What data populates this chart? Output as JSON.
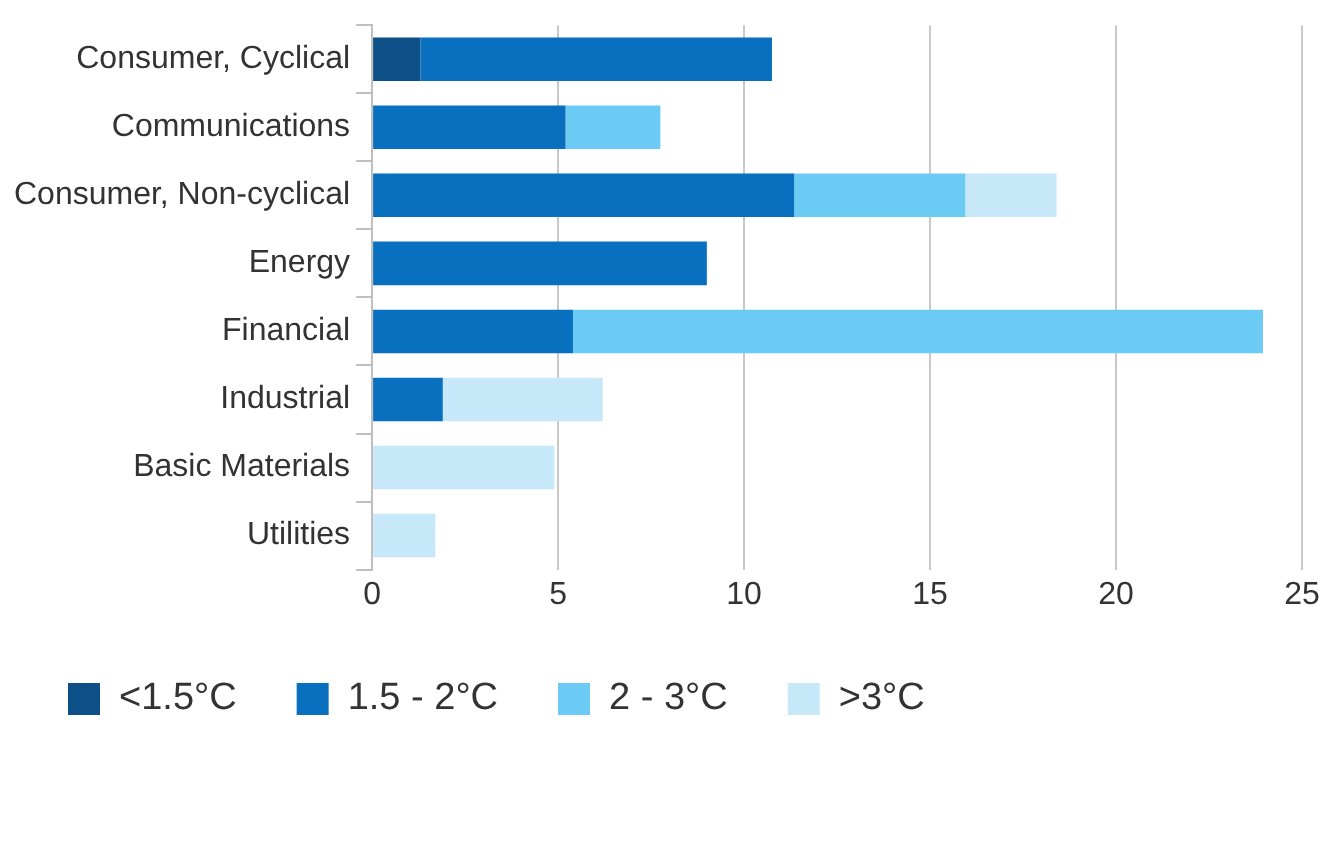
{
  "chart_data": {
    "type": "bar",
    "orientation": "horizontal",
    "stacked": true,
    "categories": [
      "Consumer, Cyclical",
      "Communications",
      "Consumer, Non-cyclical",
      "Energy",
      "Financial",
      "Industrial",
      "Basic Materials",
      "Utilities"
    ],
    "series": [
      {
        "name": "<1.5°C",
        "color": "#0d4f87",
        "values": [
          1.3,
          null,
          null,
          null,
          null,
          null,
          null,
          null
        ]
      },
      {
        "name": "1.5 - 2°C",
        "color": "#0870bf",
        "values": [
          9.45,
          5.2,
          11.35,
          9.0,
          5.4,
          1.9,
          null,
          null
        ]
      },
      {
        "name": "2 - 3°C",
        "color": "#6ccbf4",
        "values": [
          null,
          2.55,
          4.6,
          null,
          18.55,
          null,
          null,
          null
        ]
      },
      {
        "name": ">3°C",
        "color": "#c6e8f9",
        "values": [
          null,
          null,
          2.45,
          null,
          null,
          4.3,
          4.9,
          1.7
        ]
      }
    ],
    "xlim": [
      0,
      25
    ],
    "xticks": [
      0,
      5,
      10,
      15,
      20,
      25
    ],
    "grid": "x",
    "legend": "bottom left"
  }
}
